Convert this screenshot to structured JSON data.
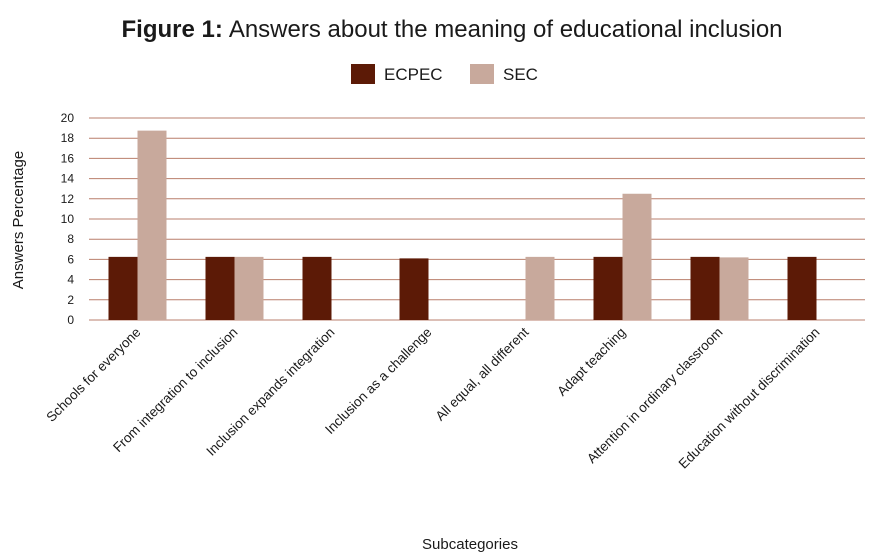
{
  "chart_data": {
    "type": "bar",
    "title_prefix": "Figure 1:",
    "title": "Answers about the meaning of educational inclusion",
    "xlabel": "Subcategories",
    "ylabel": "Answers Percentage",
    "ylim": [
      0,
      20
    ],
    "yticks": [
      0,
      2,
      4,
      6,
      8,
      10,
      12,
      14,
      16,
      18,
      20
    ],
    "grid": true,
    "legend_position": "top-center",
    "categories": [
      "Schools for everyone",
      "From integration to inclusion",
      "Inclusion expands integration",
      "Inclusion as a challenge",
      "All equal, all different",
      "Adapt teaching",
      "Attention in ordinary classroom",
      "Education without discrimination"
    ],
    "series": [
      {
        "name": "ECPEC",
        "color": "#5c1a06",
        "values": [
          6.25,
          6.25,
          6.25,
          6.1,
          0,
          6.25,
          6.25,
          6.25
        ]
      },
      {
        "name": "SEC",
        "color": "#c8a99c",
        "values": [
          18.75,
          6.25,
          0,
          0,
          6.25,
          12.5,
          6.2,
          0
        ]
      }
    ]
  }
}
